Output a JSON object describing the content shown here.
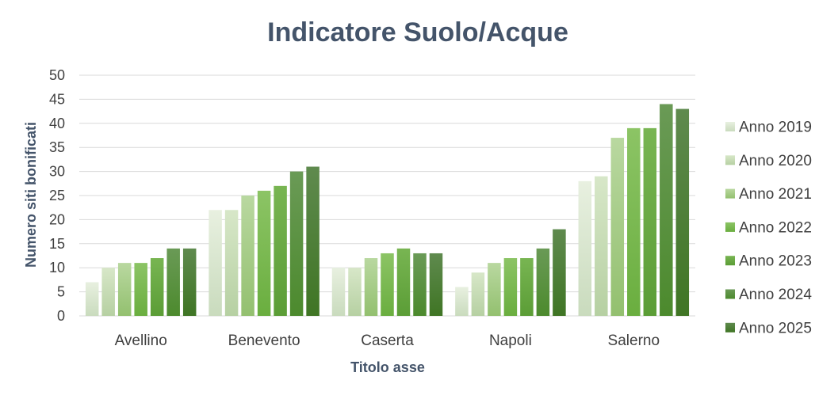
{
  "chart_data": {
    "type": "bar",
    "title": "Indicatore Suolo/Acque",
    "xlabel": "Titolo asse",
    "ylabel": "Numero siti bonificati",
    "ylim": [
      0,
      50
    ],
    "yticks": [
      0,
      5,
      10,
      15,
      20,
      25,
      30,
      35,
      40,
      45,
      50
    ],
    "grid": true,
    "legend_position": "right",
    "categories": [
      "Avellino",
      "Benevento",
      "Caserta",
      "Napoli",
      "Salerno"
    ],
    "series": [
      {
        "name": "Anno 2019",
        "color_top": "#e8f0e0",
        "color_bottom": "#c9dbbd",
        "values": [
          7,
          22,
          10,
          6,
          28
        ]
      },
      {
        "name": "Anno 2020",
        "color_top": "#d7e7c8",
        "color_bottom": "#b6d0a2",
        "values": [
          10,
          22,
          10,
          9,
          29
        ]
      },
      {
        "name": "Anno 2021",
        "color_top": "#b9d8a0",
        "color_bottom": "#93c06f",
        "values": [
          11,
          25,
          12,
          11,
          37
        ]
      },
      {
        "name": "Anno 2022",
        "color_top": "#8cc465",
        "color_bottom": "#6aae3f",
        "values": [
          11,
          26,
          13,
          12,
          39
        ]
      },
      {
        "name": "Anno 2023",
        "color_top": "#78b552",
        "color_bottom": "#5b9d36",
        "values": [
          12,
          27,
          14,
          12,
          39
        ]
      },
      {
        "name": "Anno 2024",
        "color_top": "#6a9a56",
        "color_bottom": "#4c8a2d",
        "values": [
          14,
          30,
          13,
          14,
          44
        ]
      },
      {
        "name": "Anno 2025",
        "color_top": "#5f8a4e",
        "color_bottom": "#3f7524",
        "values": [
          14,
          31,
          13,
          18,
          43
        ]
      }
    ]
  }
}
